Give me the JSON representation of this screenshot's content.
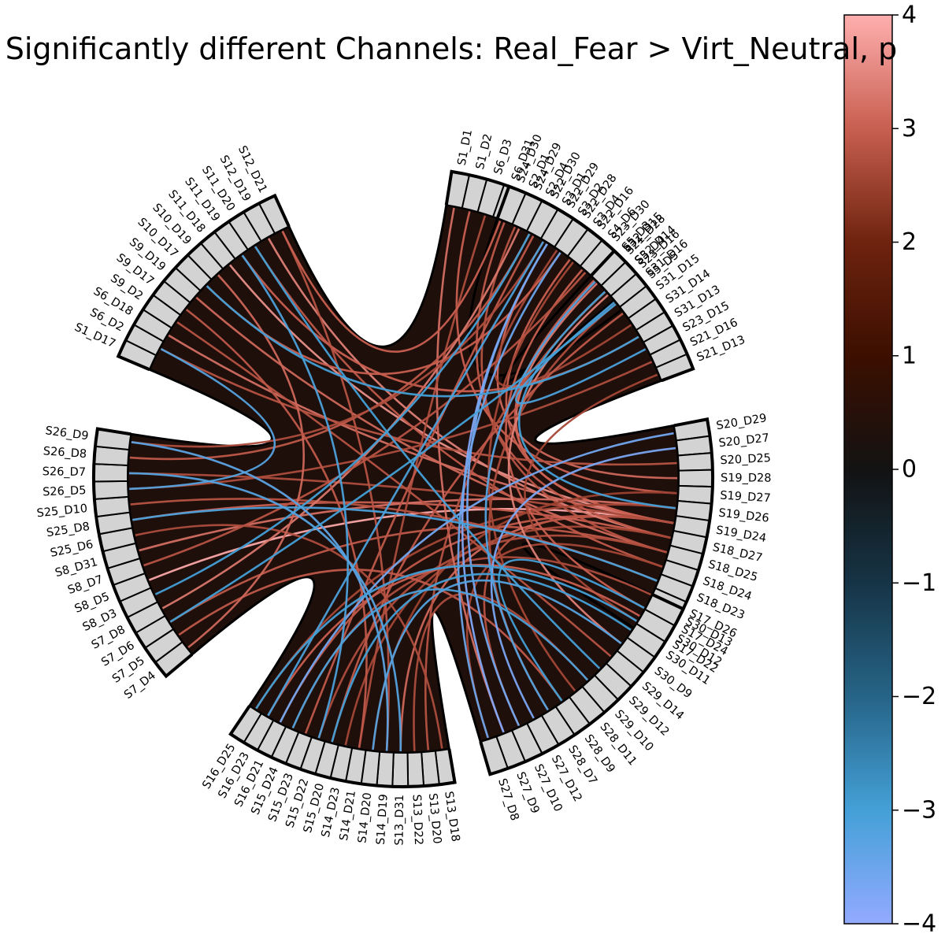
{
  "title": "Significantly different Channels: Real_Fear > Virt_Neutral, p",
  "chart_data": {
    "type": "chord",
    "groups": [
      {
        "labels": [
          "S1_D1",
          "S1_D2",
          "S6_D3",
          "S6_D31",
          "S2_D1",
          "S2_D4",
          "S3_D1",
          "S3_D2",
          "S3_D4",
          "S4_D6",
          "S5_D3",
          "S5_D4",
          "S5_D5"
        ]
      },
      {
        "labels": [
          "S24_D30",
          "S24_D29",
          "S22_D30",
          "S22_D29",
          "S22_D28",
          "S22_D16",
          "S23_D30",
          "S21_D28",
          "S23_D16"
        ]
      },
      {
        "labels": [
          "S32_D15",
          "S32_D14",
          "S31_D16",
          "S31_D15",
          "S31_D14",
          "S31_D13",
          "S23_D15",
          "S21_D16",
          "S21_D13"
        ]
      },
      {
        "labels": [
          "S20_D29",
          "S20_D27",
          "S20_D25",
          "S19_D28",
          "S19_D27",
          "S19_D26",
          "S19_D24",
          "S18_D27",
          "S18_D25",
          "S18_D24",
          "S18_D23",
          "S17_D26",
          "S17_D24",
          "S17_D22"
        ]
      },
      {
        "labels": [
          "S30_D13",
          "S30_D12",
          "S30_D11",
          "S30_D9",
          "S29_D14",
          "S29_D12",
          "S29_D10",
          "S28_D11",
          "S28_D9",
          "S28_D7",
          "S27_D12",
          "S27_D10",
          "S27_D9",
          "S27_D8"
        ]
      },
      {
        "labels": [
          "S13_D18",
          "S13_D20",
          "S13_D22",
          "S13_D31",
          "S14_D19",
          "S14_D20",
          "S14_D21",
          "S14_D23",
          "S15_D20",
          "S15_D22",
          "S15_D23",
          "S15_D24",
          "S16_D21",
          "S16_D23",
          "S16_D25"
        ]
      },
      {
        "labels": [
          "S7_D4",
          "S7_D5",
          "S7_D6",
          "S7_D8",
          "S8_D3",
          "S8_D5",
          "S8_D7",
          "S8_D31",
          "S25_D6",
          "S25_D8",
          "S25_D10",
          "S26_D5",
          "S26_D7",
          "S26_D8",
          "S26_D9"
        ]
      },
      {
        "labels": [
          "S1_D17",
          "S6_D2",
          "S6_D18",
          "S9_D2",
          "S9_D17",
          "S9_D19",
          "S10_D17",
          "S10_D19",
          "S11_D18",
          "S11_D19",
          "S11_D20",
          "S12_D19",
          "S12_D21"
        ]
      }
    ],
    "colorbar": {
      "min": -4,
      "max": 4,
      "ticks": [
        4,
        3,
        2,
        1,
        0,
        -1,
        -2,
        -3,
        -4
      ]
    },
    "links": [
      {
        "from": [
          3,
          6
        ],
        "to": [
          6,
          5
        ],
        "value": 3.9
      },
      {
        "from": [
          3,
          6
        ],
        "to": [
          7,
          8
        ],
        "value": 3.6
      },
      {
        "from": [
          3,
          6
        ],
        "to": [
          0,
          8
        ],
        "value": 3.0
      },
      {
        "from": [
          3,
          6
        ],
        "to": [
          1,
          7
        ],
        "value": 3.3
      },
      {
        "from": [
          3,
          6
        ],
        "to": [
          5,
          3
        ],
        "value": 3.1
      },
      {
        "from": [
          3,
          6
        ],
        "to": [
          5,
          12
        ],
        "value": 2.9
      },
      {
        "from": [
          3,
          6
        ],
        "to": [
          7,
          2
        ],
        "value": 3.2
      },
      {
        "from": [
          3,
          6
        ],
        "to": [
          4,
          11
        ],
        "value": 2.8
      },
      {
        "from": [
          3,
          6
        ],
        "to": [
          0,
          10
        ],
        "value": 3.0
      },
      {
        "from": [
          3,
          6
        ],
        "to": [
          6,
          12
        ],
        "value": 2.7
      },
      {
        "from": [
          3,
          7
        ],
        "to": [
          7,
          11
        ],
        "value": 3.4
      },
      {
        "from": [
          3,
          7
        ],
        "to": [
          6,
          9
        ],
        "value": 3.0
      },
      {
        "from": [
          3,
          7
        ],
        "to": [
          1,
          0
        ],
        "value": 2.9
      },
      {
        "from": [
          3,
          7
        ],
        "to": [
          5,
          7
        ],
        "value": 2.6
      },
      {
        "from": [
          3,
          8
        ],
        "to": [
          7,
          5
        ],
        "value": 3.1
      },
      {
        "from": [
          3,
          8
        ],
        "to": [
          0,
          4
        ],
        "value": 2.8
      },
      {
        "from": [
          3,
          8
        ],
        "to": [
          6,
          2
        ],
        "value": 2.9
      },
      {
        "from": [
          3,
          8
        ],
        "to": [
          5,
          9
        ],
        "value": 2.7
      },
      {
        "from": [
          3,
          5
        ],
        "to": [
          6,
          7
        ],
        "value": 3.2
      },
      {
        "from": [
          3,
          5
        ],
        "to": [
          5,
          14
        ],
        "value": 2.6
      },
      {
        "from": [
          3,
          4
        ],
        "to": [
          0,
          1
        ],
        "value": 3.0
      },
      {
        "from": [
          3,
          4
        ],
        "to": [
          5,
          5
        ],
        "value": 2.5
      },
      {
        "from": [
          3,
          9
        ],
        "to": [
          7,
          10
        ],
        "value": 2.9
      },
      {
        "from": [
          3,
          9
        ],
        "to": [
          4,
          13
        ],
        "value": 2.6
      },
      {
        "from": [
          3,
          10
        ],
        "to": [
          6,
          10
        ],
        "value": 2.8
      },
      {
        "from": [
          3,
          3
        ],
        "to": [
          1,
          3
        ],
        "value": 3.1
      },
      {
        "from": [
          3,
          2
        ],
        "to": [
          7,
          1
        ],
        "value": 2.8
      },
      {
        "from": [
          3,
          11
        ],
        "to": [
          5,
          11
        ],
        "value": 2.7
      },
      {
        "from": [
          0,
          0
        ],
        "to": [
          4,
          12
        ],
        "value": 3.2
      },
      {
        "from": [
          0,
          2
        ],
        "to": [
          5,
          6
        ],
        "value": 2.7
      },
      {
        "from": [
          0,
          5
        ],
        "to": [
          6,
          13
        ],
        "value": 2.9
      },
      {
        "from": [
          0,
          7
        ],
        "to": [
          2,
          4
        ],
        "value": 2.6
      },
      {
        "from": [
          0,
          11
        ],
        "to": [
          5,
          1
        ],
        "value": 2.8
      },
      {
        "from": [
          0,
          12
        ],
        "to": [
          4,
          9
        ],
        "value": 2.7
      },
      {
        "from": [
          0,
          9
        ],
        "to": [
          3,
          12
        ],
        "value": 3.0
      },
      {
        "from": [
          1,
          1
        ],
        "to": [
          6,
          3
        ],
        "value": 3.3
      },
      {
        "from": [
          1,
          2
        ],
        "to": [
          5,
          10
        ],
        "value": 2.9
      },
      {
        "from": [
          1,
          4
        ],
        "to": [
          7,
          6
        ],
        "value": 3.0
      },
      {
        "from": [
          1,
          5
        ],
        "to": [
          4,
          7
        ],
        "value": 2.6
      },
      {
        "from": [
          1,
          8
        ],
        "to": [
          4,
          3
        ],
        "value": 3.4
      },
      {
        "from": [
          1,
          6
        ],
        "to": [
          6,
          6
        ],
        "value": 2.8
      },
      {
        "from": [
          2,
          7
        ],
        "to": [
          6,
          11
        ],
        "value": 2.7
      },
      {
        "from": [
          2,
          3
        ],
        "to": [
          5,
          8
        ],
        "value": 2.9
      },
      {
        "from": [
          2,
          5
        ],
        "to": [
          7,
          9
        ],
        "value": 3.0
      },
      {
        "from": [
          2,
          8
        ],
        "to": [
          3,
          13
        ],
        "value": 2.6
      },
      {
        "from": [
          4,
          4
        ],
        "to": [
          7,
          3
        ],
        "value": 2.8
      },
      {
        "from": [
          4,
          8
        ],
        "to": [
          6,
          1
        ],
        "value": 2.9
      },
      {
        "from": [
          4,
          6
        ],
        "to": [
          5,
          2
        ],
        "value": 2.7
      },
      {
        "from": [
          4,
          1
        ],
        "to": [
          5,
          13
        ],
        "value": 3.0
      },
      {
        "from": [
          5,
          0
        ],
        "to": [
          6,
          8
        ],
        "value": 2.7
      },
      {
        "from": [
          5,
          4
        ],
        "to": [
          7,
          12
        ],
        "value": 2.8
      },
      {
        "from": [
          6,
          0
        ],
        "to": [
          7,
          7
        ],
        "value": 3.1
      },
      {
        "from": [
          6,
          14
        ],
        "to": [
          0,
          6
        ],
        "value": 2.7
      },
      {
        "from": [
          7,
          4
        ],
        "to": [
          5,
          6
        ],
        "value": 2.9
      },
      {
        "from": [
          0,
          3
        ],
        "to": [
          7,
          12
        ],
        "value": 3.0
      },
      {
        "from": [
          1,
          3
        ],
        "to": [
          4,
          12
        ],
        "value": -3.8
      },
      {
        "from": [
          1,
          3
        ],
        "to": [
          4,
          11
        ],
        "value": -3.6
      },
      {
        "from": [
          1,
          4
        ],
        "to": [
          4,
          13
        ],
        "value": -3.5
      },
      {
        "from": [
          3,
          1
        ],
        "to": [
          4,
          10
        ],
        "value": -3.7
      },
      {
        "from": [
          3,
          0
        ],
        "to": [
          5,
          12
        ],
        "value": -3.6
      },
      {
        "from": [
          2,
          0
        ],
        "to": [
          4,
          9
        ],
        "value": -3.2
      },
      {
        "from": [
          2,
          1
        ],
        "to": [
          3,
          5
        ],
        "value": -3.0
      },
      {
        "from": [
          2,
          2
        ],
        "to": [
          2,
          6
        ],
        "value": -3.1
      },
      {
        "from": [
          0,
          5
        ],
        "to": [
          6,
          4
        ],
        "value": -3.0
      },
      {
        "from": [
          0,
          6
        ],
        "to": [
          5,
          13
        ],
        "value": -3.1
      },
      {
        "from": [
          7,
          1
        ],
        "to": [
          6,
          11
        ],
        "value": -3.2
      },
      {
        "from": [
          7,
          10
        ],
        "to": [
          4,
          5
        ],
        "value": -3.0
      },
      {
        "from": [
          7,
          9
        ],
        "to": [
          5,
          9
        ],
        "value": -3.1
      },
      {
        "from": [
          6,
          14
        ],
        "to": [
          5,
          4
        ],
        "value": -3.3
      },
      {
        "from": [
          6,
          2
        ],
        "to": [
          0,
          12
        ],
        "value": -3.0
      },
      {
        "from": [
          5,
          5
        ],
        "to": [
          4,
          3
        ],
        "value": -3.2
      },
      {
        "from": [
          5,
          8
        ],
        "to": [
          4,
          2
        ],
        "value": -3.0
      },
      {
        "from": [
          5,
          11
        ],
        "to": [
          4,
          6
        ],
        "value": -3.1
      },
      {
        "from": [
          6,
          9
        ],
        "to": [
          3,
          10
        ],
        "value": -3.1
      },
      {
        "from": [
          4,
          8
        ],
        "to": [
          3,
          12
        ],
        "value": -3.0
      },
      {
        "from": [
          7,
          6
        ],
        "to": [
          2,
          5
        ],
        "value": -3.0
      },
      {
        "from": [
          6,
          12
        ],
        "to": [
          5,
          3
        ],
        "value": -3.2
      },
      {
        "from": [
          3,
          13
        ],
        "to": [
          5,
          14
        ],
        "value": -3.0
      }
    ]
  }
}
